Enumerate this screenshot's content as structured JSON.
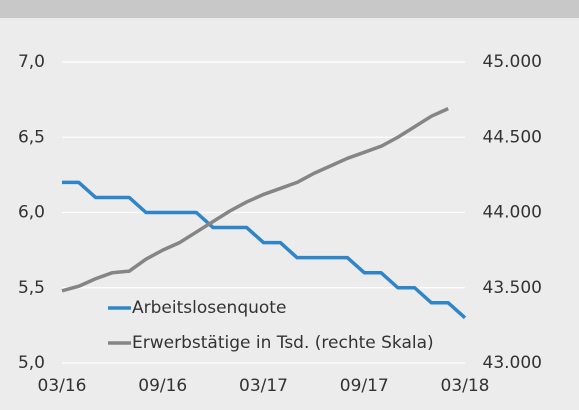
{
  "chart_data": {
    "type": "line",
    "categories": [
      "03/16",
      null,
      null,
      null,
      null,
      null,
      "09/16",
      null,
      null,
      null,
      null,
      null,
      "03/17",
      null,
      null,
      null,
      null,
      null,
      "09/17",
      null,
      null,
      null,
      null,
      null,
      "03/18"
    ],
    "series": [
      {
        "name": "Arbeitslosenquote",
        "color": "#2e86c8",
        "axis": "y",
        "values": [
          6.2,
          6.2,
          6.1,
          6.1,
          6.1,
          6.0,
          6.0,
          6.0,
          6.0,
          5.9,
          5.9,
          5.9,
          5.8,
          5.8,
          5.7,
          5.7,
          5.7,
          5.7,
          5.6,
          5.6,
          5.5,
          5.5,
          5.4,
          5.4,
          5.3
        ]
      },
      {
        "name": "Erwerbstätige in Tsd. (rechte Skala)",
        "color": "#858585",
        "axis": "y2",
        "values": [
          43480,
          43510,
          43560,
          43600,
          43610,
          43690,
          43750,
          43800,
          43870,
          43940,
          44010,
          44070,
          44120,
          44160,
          44200,
          44260,
          44310,
          44360,
          44400,
          44440,
          44500,
          44570,
          44640,
          44690,
          null
        ]
      }
    ],
    "ylim": [
      5,
      7
    ],
    "yticks": [
      {
        "value": 5,
        "label": "5,0"
      },
      {
        "value": 5.5,
        "label": "5,5"
      },
      {
        "value": 6,
        "label": "6,0"
      },
      {
        "value": 6.5,
        "label": "6,5"
      },
      {
        "value": 7,
        "label": "7,0"
      }
    ],
    "y2lim": [
      43000,
      45000
    ],
    "y2ticks": [
      {
        "value": 43000,
        "label": "43.000"
      },
      {
        "value": 43500,
        "label": "43.500"
      },
      {
        "value": 44000,
        "label": "44.000"
      },
      {
        "value": 44500,
        "label": "44.500"
      },
      {
        "value": 45000,
        "label": "45.000"
      }
    ],
    "grid": true,
    "legend": "lower-left"
  }
}
